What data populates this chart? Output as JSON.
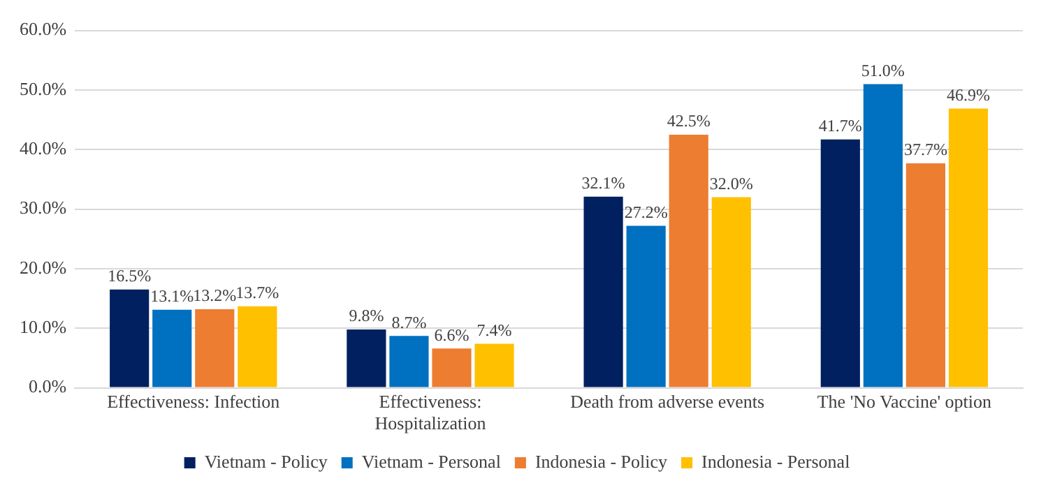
{
  "chart_data": {
    "type": "bar",
    "categories": [
      "Effectiveness: Infection",
      "Effectiveness: Hospitalization",
      "Death from adverse events",
      "The 'No Vaccine' option"
    ],
    "series": [
      {
        "name": "Vietnam - Policy",
        "color": "#002060",
        "values": [
          16.5,
          9.8,
          32.1,
          41.7
        ],
        "value_labels": [
          "16.5%",
          "9.8%",
          "32.1%",
          "41.7%"
        ]
      },
      {
        "name": "Vietnam - Personal",
        "color": "#0070c0",
        "values": [
          13.1,
          8.7,
          27.2,
          51.0
        ],
        "value_labels": [
          "13.1%",
          "8.7%",
          "27.2%",
          "51.0%"
        ]
      },
      {
        "name": "Indonesia - Policy",
        "color": "#ed7d31",
        "values": [
          13.2,
          6.6,
          42.5,
          37.7
        ],
        "value_labels": [
          "13.2%",
          "6.6%",
          "42.5%",
          "37.7%"
        ]
      },
      {
        "name": "Indonesia - Personal",
        "color": "#ffc000",
        "values": [
          13.7,
          7.4,
          32.0,
          46.9
        ],
        "value_labels": [
          "13.7%",
          "7.4%",
          "32.0%",
          "46.9%"
        ]
      }
    ],
    "ylim": [
      0,
      60
    ],
    "yticks": [
      {
        "value": 0,
        "label": "0.0%"
      },
      {
        "value": 10,
        "label": "10.0%"
      },
      {
        "value": 20,
        "label": "20.0%"
      },
      {
        "value": 30,
        "label": "30.0%"
      },
      {
        "value": 40,
        "label": "40.0%"
      },
      {
        "value": 50,
        "label": "50.0%"
      },
      {
        "value": 60,
        "label": "60.0%"
      }
    ],
    "grid": "y",
    "legend": "bottom"
  }
}
